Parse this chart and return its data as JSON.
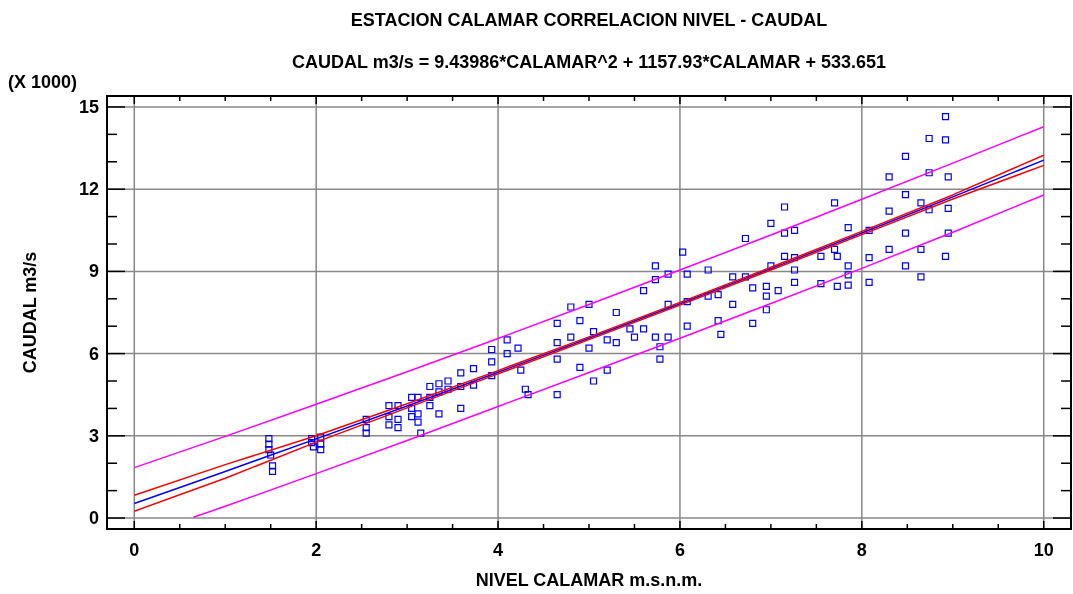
{
  "chart_data": {
    "type": "scatter",
    "title": "ESTACION CALAMAR CORRELACION NIVEL - CAUDAL",
    "subtitle": "CAUDAL m3/s = 9.43986*CALAMAR^2  + 1157.93*CALAMAR + 533.651",
    "xlabel": "NIVEL CALAMAR m.s.n.m.",
    "ylabel": "CAUDAL m3/s",
    "annotations": [
      "(X 1000)"
    ],
    "xlim": [
      -0.3,
      10.3
    ],
    "ylim": [
      -0.4,
      15.4
    ],
    "xticks": [
      0,
      {
        "value": 0.5,
        "label": null
      },
      {
        "value": 1,
        "label": null
      },
      {
        "value": 1.5,
        "label": null
      },
      2,
      {
        "value": 2.5,
        "label": null
      },
      {
        "value": 3,
        "label": null
      },
      {
        "value": 3.5,
        "label": null
      },
      4,
      {
        "value": 4.5,
        "label": null
      },
      {
        "value": 5,
        "label": null
      },
      {
        "value": 5.5,
        "label": null
      },
      6,
      {
        "value": 6.5,
        "label": null
      },
      {
        "value": 7,
        "label": null
      },
      {
        "value": 7.5,
        "label": null
      },
      8,
      {
        "value": 8.5,
        "label": null
      },
      {
        "value": 9,
        "label": null
      },
      {
        "value": 9.5,
        "label": null
      },
      10
    ],
    "yticks": [
      0,
      {
        "value": 1,
        "label": null
      },
      {
        "value": 2,
        "label": null
      },
      3,
      {
        "value": 4,
        "label": null
      },
      {
        "value": 5,
        "label": null
      },
      6,
      {
        "value": 7,
        "label": null
      },
      {
        "value": 8,
        "label": null
      },
      9,
      {
        "value": 10,
        "label": null
      },
      {
        "value": 11,
        "label": null
      },
      12,
      {
        "value": 13,
        "label": null
      },
      {
        "value": 14,
        "label": null
      },
      15
    ],
    "grid": true,
    "marker": "square",
    "series": [
      {
        "color": "#0000ff",
        "x": [
          1.48,
          1.48,
          1.48,
          1.5,
          1.52,
          1.52,
          1.95,
          1.95,
          1.97,
          2.05,
          2.05,
          2.05,
          2.55,
          2.55,
          2.55,
          2.8,
          2.8,
          2.8,
          2.9,
          2.9,
          2.9,
          3.05,
          3.05,
          3.05,
          3.12,
          3.12,
          3.12,
          3.15,
          3.25,
          3.25,
          3.25,
          3.35,
          3.35,
          3.35,
          3.45,
          3.45,
          3.59,
          3.59,
          3.59,
          3.73,
          3.73,
          3.93,
          3.93,
          3.93,
          4.1,
          4.1,
          4.22,
          4.25,
          4.3,
          4.33,
          4.65,
          4.65,
          4.65,
          4.65,
          4.8,
          4.8,
          4.9,
          4.9,
          5.0,
          5.0,
          5.05,
          5.05,
          5.2,
          5.2,
          5.3,
          5.3,
          5.45,
          5.5,
          5.6,
          5.6,
          5.73,
          5.73,
          5.73,
          5.78,
          5.78,
          5.87,
          5.87,
          5.87,
          6.03,
          6.08,
          6.08,
          6.08,
          6.31,
          6.31,
          6.42,
          6.42,
          6.45,
          6.58,
          6.58,
          6.72,
          6.72,
          6.8,
          6.8,
          6.95,
          6.95,
          6.95,
          7.0,
          7.0,
          7.08,
          7.15,
          7.15,
          7.15,
          7.26,
          7.26,
          7.26,
          7.26,
          7.55,
          7.55,
          7.7,
          7.7,
          7.73,
          7.73,
          7.85,
          7.85,
          7.85,
          7.85,
          8.08,
          8.08,
          8.08,
          8.3,
          8.3,
          8.3,
          8.48,
          8.48,
          8.48,
          8.48,
          8.65,
          8.65,
          8.65,
          8.74,
          8.74,
          8.74,
          8.92,
          8.92,
          8.95,
          8.95,
          8.95,
          8.92
        ],
        "values": [
          2.9,
          2.7,
          2.5,
          2.3,
          1.9,
          1.7,
          2.9,
          2.75,
          2.6,
          2.95,
          2.7,
          2.5,
          3.6,
          3.3,
          3.1,
          4.1,
          3.7,
          3.4,
          4.1,
          3.6,
          3.3,
          4.4,
          4.0,
          3.7,
          4.4,
          3.8,
          3.5,
          3.1,
          4.8,
          4.4,
          4.1,
          4.9,
          4.6,
          3.8,
          5.0,
          4.7,
          5.3,
          4.8,
          4.0,
          5.45,
          4.85,
          6.15,
          5.7,
          5.2,
          6.5,
          6.0,
          6.2,
          5.4,
          4.7,
          4.5,
          7.1,
          6.4,
          5.8,
          4.5,
          7.7,
          6.6,
          7.2,
          5.5,
          7.8,
          6.2,
          6.8,
          5.0,
          6.5,
          5.4,
          7.5,
          6.4,
          6.9,
          6.6,
          8.3,
          6.9,
          9.2,
          8.7,
          6.6,
          6.25,
          5.8,
          8.9,
          7.8,
          6.6,
          9.7,
          8.9,
          7.9,
          7.0,
          9.05,
          8.1,
          8.15,
          7.2,
          6.7,
          8.8,
          7.8,
          10.2,
          8.8,
          8.4,
          7.1,
          8.45,
          8.1,
          7.6,
          10.75,
          9.2,
          8.3,
          11.35,
          10.4,
          9.55,
          10.5,
          9.5,
          9.05,
          8.6,
          9.55,
          8.55,
          11.5,
          9.8,
          9.55,
          8.45,
          10.6,
          9.2,
          8.87,
          8.5,
          10.5,
          9.5,
          8.6,
          12.45,
          11.2,
          9.8,
          13.2,
          11.8,
          10.4,
          9.2,
          11.5,
          9.8,
          8.8,
          13.85,
          12.6,
          11.25,
          14.65,
          13.8,
          12.45,
          11.3,
          10.4,
          9.55
        ]
      },
      {
        "type": "line",
        "marker": "none",
        "color": "#0000ff",
        "x": [
          0,
          1,
          2,
          3,
          4,
          5,
          6,
          7,
          8,
          9,
          10
        ],
        "values": [
          0.53,
          1.7,
          2.89,
          4.09,
          5.32,
          6.56,
          7.82,
          9.1,
          10.4,
          11.72,
          13.06
        ]
      },
      {
        "type": "line",
        "marker": "none",
        "color": "#ff0000",
        "x": [
          0,
          1,
          2,
          3,
          4,
          5,
          6,
          7,
          8,
          9,
          10
        ],
        "values": [
          0.83,
          1.95,
          3.0,
          4.17,
          5.38,
          6.61,
          7.87,
          9.15,
          10.46,
          11.79,
          13.24
        ]
      },
      {
        "type": "line",
        "marker": "none",
        "color": "#ff0000",
        "x": [
          0,
          1,
          2,
          3,
          4,
          5,
          6,
          7,
          8,
          9,
          10
        ],
        "values": [
          0.25,
          1.45,
          2.77,
          4.02,
          5.26,
          6.51,
          7.77,
          9.05,
          10.34,
          11.64,
          12.87
        ]
      },
      {
        "type": "line",
        "marker": "none",
        "color": "#ff00ff",
        "x": [
          0,
          1,
          2,
          3,
          4,
          5,
          6,
          7,
          8,
          9,
          10
        ],
        "values": [
          1.84,
          2.98,
          4.15,
          5.34,
          6.55,
          7.79,
          9.05,
          10.33,
          11.63,
          12.95,
          14.28
        ]
      },
      {
        "type": "line",
        "marker": "none",
        "color": "#ff00ff",
        "x": [
          0.65,
          1,
          2,
          3,
          4,
          5,
          6,
          7,
          8,
          9,
          10
        ],
        "values": [
          0.03,
          0.43,
          1.62,
          2.83,
          4.07,
          5.31,
          6.56,
          7.83,
          9.11,
          10.43,
          11.79
        ]
      }
    ]
  }
}
